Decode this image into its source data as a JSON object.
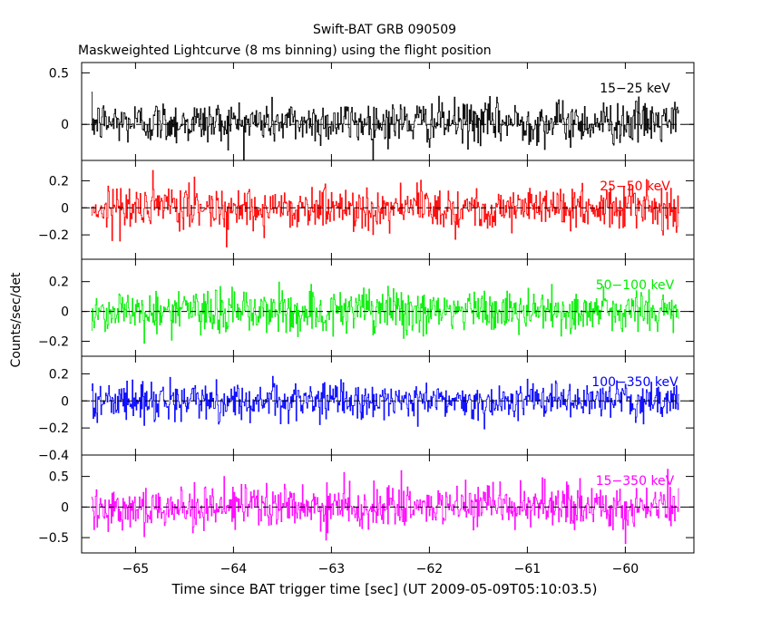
{
  "chart_data": {
    "type": "line",
    "title": "Swift-BAT GRB 090509",
    "subtitle": "Maskweighted Lightcurve (8 ms binning) using the flight position",
    "xlabel": "Time since BAT trigger time [sec] (UT 2009-05-09T05:10:03.5)",
    "ylabel": "Counts/sec/det",
    "xlim": [
      -65.55,
      -59.3
    ],
    "x_range_data": [
      -65.45,
      -59.45
    ],
    "bin_width": 0.008,
    "xticks": [
      -65,
      -64,
      -63,
      -62,
      -61,
      -60
    ],
    "xticklabels": [
      "−65",
      "−64",
      "−63",
      "−62",
      "−61",
      "−60"
    ],
    "grid": false,
    "series": [
      {
        "name": "15−25 keV",
        "color": "#000000",
        "ylim": [
          -0.35,
          0.6
        ],
        "yticks": [
          0,
          0.5
        ],
        "yticklabels": [
          "0",
          "0.5"
        ],
        "mean": 0.02,
        "amplitude": 0.25
      },
      {
        "name": "25−50 keV",
        "color": "#ff0000",
        "ylim": [
          -0.38,
          0.35
        ],
        "yticks": [
          -0.2,
          0,
          0.2
        ],
        "yticklabels": [
          "−0.2",
          "0",
          "0.2"
        ],
        "mean": 0.0,
        "amplitude": 0.19
      },
      {
        "name": "50−100 keV",
        "color": "#00ee00",
        "ylim": [
          -0.3,
          0.35
        ],
        "yticks": [
          -0.2,
          0,
          0.2
        ],
        "yticklabels": [
          "−0.2",
          "0",
          "0.2"
        ],
        "mean": 0.0,
        "amplitude": 0.18
      },
      {
        "name": "100−350 keV",
        "color": "#0000ff",
        "ylim": [
          -0.4,
          0.33
        ],
        "yticks": [
          -0.4,
          -0.2,
          0,
          0.2
        ],
        "yticklabels": [
          "−0.4",
          "−0.2",
          "0",
          "0.2"
        ],
        "mean": 0.0,
        "amplitude": 0.16
      },
      {
        "name": "15−350 keV",
        "color": "#ff00ff",
        "ylim": [
          -0.75,
          0.85
        ],
        "yticks": [
          -0.5,
          0,
          0.5
        ],
        "yticklabels": [
          "−0.5",
          "0",
          "0.5"
        ],
        "mean": 0.0,
        "amplitude": 0.42
      }
    ]
  }
}
